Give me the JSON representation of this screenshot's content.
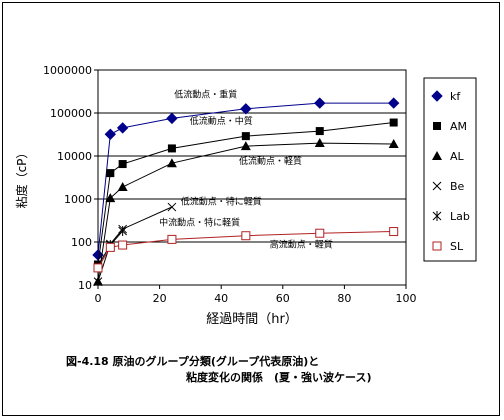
{
  "chart_data": {
    "type": "line",
    "xlabel": "経過時間（hr）",
    "ylabel": "粘度（cP）",
    "x_scale": "linear",
    "y_scale": "log",
    "xlim": [
      0,
      100
    ],
    "ylim": [
      10,
      1000000
    ],
    "x_ticks": [
      "0",
      "20",
      "40",
      "60",
      "80",
      "100"
    ],
    "y_ticks": [
      "10",
      "100",
      "1000",
      "10000",
      "100000",
      "1000000"
    ],
    "grid": "horizontal",
    "legend_position": "right",
    "series": [
      {
        "name": "kf",
        "marker": "diamond-filled",
        "color": "#00008B",
        "points": [
          [
            0,
            50
          ],
          [
            4,
            32000
          ],
          [
            8,
            45000
          ],
          [
            24,
            75000
          ],
          [
            48,
            125000
          ],
          [
            72,
            170000
          ],
          [
            96,
            170000
          ]
        ]
      },
      {
        "name": "AM",
        "marker": "square-filled",
        "color": "#000000",
        "points": [
          [
            0,
            30
          ],
          [
            4,
            4000
          ],
          [
            8,
            6500
          ],
          [
            24,
            15000
          ],
          [
            48,
            29000
          ],
          [
            72,
            38000
          ],
          [
            96,
            60000
          ]
        ]
      },
      {
        "name": "AL",
        "marker": "triangle-filled",
        "color": "#000000",
        "points": [
          [
            0,
            12
          ],
          [
            4,
            1050
          ],
          [
            8,
            1900
          ],
          [
            24,
            6800
          ],
          [
            48,
            17000
          ],
          [
            72,
            20000
          ],
          [
            96,
            19000
          ]
        ]
      },
      {
        "name": "Be",
        "marker": "x",
        "color": "#000000",
        "points": [
          [
            0,
            12
          ],
          [
            4,
            90
          ],
          [
            8,
            200
          ],
          [
            24,
            650
          ]
        ]
      },
      {
        "name": "Lab",
        "marker": "asterisk",
        "color": "#000000",
        "points": [
          [
            0,
            28
          ],
          [
            4,
            85
          ],
          [
            8,
            180
          ]
        ]
      },
      {
        "name": "SL",
        "marker": "square-open",
        "color": "#B22222",
        "points": [
          [
            0,
            25
          ],
          [
            4,
            75
          ],
          [
            8,
            85
          ],
          [
            24,
            115
          ],
          [
            48,
            140
          ],
          [
            72,
            160
          ],
          [
            96,
            175
          ]
        ]
      }
    ],
    "annotations": [
      {
        "text": "低流動点・重質",
        "x": 35,
        "y": 230000
      },
      {
        "text": "低流動点・中質",
        "x": 40,
        "y": 56000
      },
      {
        "text": "低流動点・軽質",
        "x": 56,
        "y": 6500
      },
      {
        "text": "低流動点・特に軽質",
        "x": 40,
        "y": 750
      },
      {
        "text": "中流動点・特に軽質",
        "x": 33,
        "y": 240
      },
      {
        "text": "高流動点・軽質",
        "x": 66,
        "y": 75
      }
    ]
  },
  "caption": {
    "line1": "図-4.18 原油のグループ分類(グループ代表原油)と",
    "line2": "粘度変化の関係　(夏・強い波ケース)"
  }
}
